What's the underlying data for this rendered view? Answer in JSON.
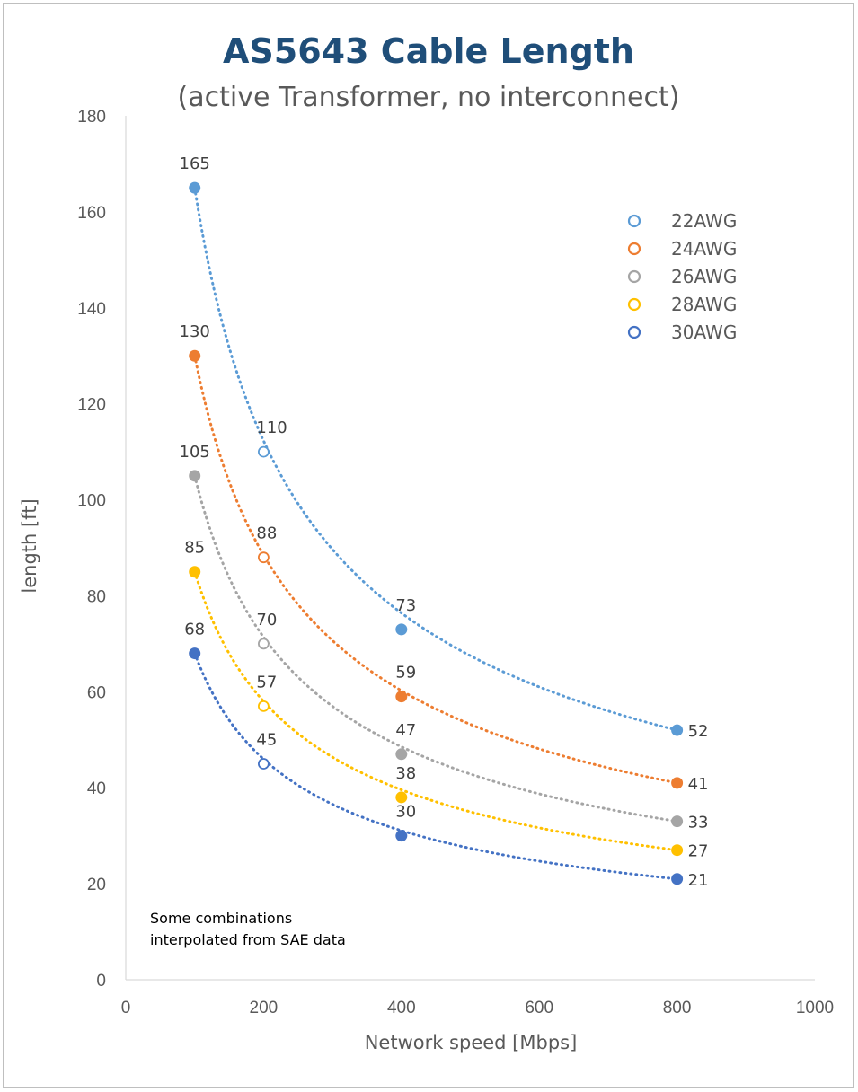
{
  "chart_data": {
    "type": "scatter",
    "title": "AS5643 Cable Length",
    "subtitle": "(active Transformer, no interconnect)",
    "xlabel": "Network speed [Mbps]",
    "ylabel": "length [ft]",
    "xlim": [
      0,
      1000
    ],
    "ylim": [
      0,
      180
    ],
    "xticks": [
      0,
      200,
      400,
      600,
      800,
      1000
    ],
    "yticks": [
      0,
      20,
      40,
      60,
      80,
      100,
      120,
      140,
      160,
      180
    ],
    "grid": false,
    "legend_position": "top-right",
    "trendline": "power, dotted",
    "annotation": [
      "Some combinations",
      "interpolated from SAE data"
    ],
    "series": [
      {
        "name": "22AWG",
        "color": "#5b9bd5",
        "points": [
          {
            "x": 100,
            "y": 165,
            "label": "165",
            "hollow": false
          },
          {
            "x": 200,
            "y": 110,
            "label": "110",
            "hollow": true
          },
          {
            "x": 400,
            "y": 73,
            "label": "73",
            "hollow": false
          },
          {
            "x": 800,
            "y": 52,
            "label": "52",
            "hollow": false
          }
        ]
      },
      {
        "name": "24AWG",
        "color": "#ed7d31",
        "points": [
          {
            "x": 100,
            "y": 130,
            "label": "130",
            "hollow": false
          },
          {
            "x": 200,
            "y": 88,
            "label": "88",
            "hollow": true
          },
          {
            "x": 400,
            "y": 59,
            "label": "59",
            "hollow": false
          },
          {
            "x": 800,
            "y": 41,
            "label": "41",
            "hollow": false
          }
        ]
      },
      {
        "name": "26AWG",
        "color": "#a5a5a5",
        "points": [
          {
            "x": 100,
            "y": 105,
            "label": "105",
            "hollow": false
          },
          {
            "x": 200,
            "y": 70,
            "label": "70",
            "hollow": true
          },
          {
            "x": 400,
            "y": 47,
            "label": "47",
            "hollow": false
          },
          {
            "x": 800,
            "y": 33,
            "label": "33",
            "hollow": false
          }
        ]
      },
      {
        "name": "28AWG",
        "color": "#ffc000",
        "points": [
          {
            "x": 100,
            "y": 85,
            "label": "85",
            "hollow": false
          },
          {
            "x": 200,
            "y": 57,
            "label": "57",
            "hollow": true
          },
          {
            "x": 400,
            "y": 38,
            "label": "38",
            "hollow": false
          },
          {
            "x": 800,
            "y": 27,
            "label": "27",
            "hollow": false
          }
        ]
      },
      {
        "name": "30AWG",
        "color": "#4472c4",
        "points": [
          {
            "x": 100,
            "y": 68,
            "label": "68",
            "hollow": false
          },
          {
            "x": 200,
            "y": 45,
            "label": "45",
            "hollow": true
          },
          {
            "x": 400,
            "y": 30,
            "label": "30",
            "hollow": false
          },
          {
            "x": 800,
            "y": 21,
            "label": "21",
            "hollow": false
          }
        ]
      }
    ]
  }
}
